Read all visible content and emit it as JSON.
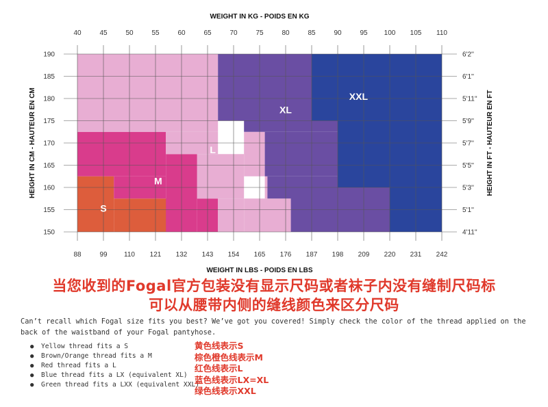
{
  "chart_data": {
    "type": "heatmap",
    "title_top": "WEIGHT IN KG - POIDS EN KG",
    "title_bottom": "WEIGHT IN LBS - POIDS EN LBS",
    "ylabel_left": "HEIGHT IN CM - HAUTEUR EN CM",
    "ylabel_right": "HEIGHT IN FT - HAUTEUR EN FT",
    "x_kg_ticks": [
      "40",
      "45",
      "50",
      "55",
      "60",
      "65",
      "70",
      "75",
      "80",
      "85",
      "90",
      "95",
      "100",
      "105",
      "110"
    ],
    "x_lbs_ticks": [
      "88",
      "99",
      "110",
      "121",
      "132",
      "143",
      "154",
      "165",
      "176",
      "187",
      "198",
      "209",
      "220",
      "231",
      "242"
    ],
    "y_cm_ticks": [
      "190",
      "185",
      "180",
      "175",
      "170",
      "165",
      "160",
      "155",
      "150"
    ],
    "y_ft_ticks": [
      "6'2''",
      "6'1''",
      "5'11''",
      "5'9''",
      "5'7''",
      "5'5''",
      "5'3''",
      "5'1''",
      "4'11''"
    ],
    "xlim": [
      40,
      110
    ],
    "ylim": [
      150,
      190
    ],
    "grid": true,
    "sizes": [
      {
        "name": "S",
        "color": "#dd5d3c",
        "label_at": {
          "kg": 45,
          "cm": 155.3
        },
        "regions": [
          [
            40,
            47,
            150,
            162.5
          ],
          [
            47,
            57.5,
            150,
            157.5
          ]
        ]
      },
      {
        "name": "M",
        "color": "#d93c8c",
        "label_at": {
          "kg": 55.5,
          "cm": 161.5
        },
        "regions": [
          [
            40,
            57,
            162.5,
            172.5
          ],
          [
            47,
            57,
            157.5,
            162.5
          ],
          [
            57,
            63,
            150,
            167.5
          ],
          [
            63,
            67,
            150,
            157.5
          ]
        ]
      },
      {
        "name": "L",
        "color": "#e8aed3",
        "label_at": {
          "kg": 66,
          "cm": 168.5
        },
        "regions": [
          [
            40,
            67,
            172.5,
            190
          ],
          [
            57,
            67,
            167.5,
            172.5
          ],
          [
            63,
            72,
            157.5,
            167.5
          ],
          [
            67,
            72,
            150,
            157.5
          ],
          [
            72,
            76,
            162.5,
            172.5
          ],
          [
            72,
            81,
            150,
            157.5
          ],
          [
            76,
            76.5,
            157.5,
            162.5
          ],
          [
            76.5,
            81,
            157.5,
            157.5
          ]
        ]
      },
      {
        "name": "XL",
        "color": "#6a4ea3",
        "label_at": {
          "kg": 80,
          "cm": 177.5
        },
        "regions": [
          [
            67,
            85,
            175,
            190
          ],
          [
            72,
            90,
            172.5,
            175
          ],
          [
            76,
            90,
            162.5,
            172.5
          ],
          [
            76.5,
            90,
            157.5,
            162.5
          ],
          [
            81,
            100,
            150,
            160
          ],
          [
            90,
            100,
            160,
            160
          ]
        ]
      },
      {
        "name": "XXL",
        "color": "#2a459d",
        "label_at": {
          "kg": 94,
          "cm": 180.5
        },
        "regions": [
          [
            85,
            110,
            175,
            190
          ],
          [
            90,
            110,
            160,
            175
          ],
          [
            100,
            110,
            150,
            160
          ]
        ]
      }
    ]
  },
  "notice": {
    "line1": "当您收到的Fogal官方包装没有显示尺码或者袜子内没有缝制尺码标",
    "line2": "可以从腰带内侧的缝线颜色来区分尺码"
  },
  "intro": "Can’t recall which Fogal size fits you best? We’ve got you covered! Simply check the color of the thread applied on the back of the waistband of your Fogal pantyhose.",
  "threads": [
    {
      "en": "Yellow thread fits a S",
      "cn": "黄色线表示S"
    },
    {
      "en": "Brown/Orange thread fits a M",
      "cn": "棕色橙色线表示M"
    },
    {
      "en": "Red thread fits a L",
      "cn": "红色线表示L"
    },
    {
      "en": "Blue thread fits a LX (equivalent XL)",
      "cn": "蓝色线表示LX=XL"
    },
    {
      "en": "Green thread fits a LXX (equivalent XXL)",
      "cn": "绿色线表示XXL"
    }
  ]
}
